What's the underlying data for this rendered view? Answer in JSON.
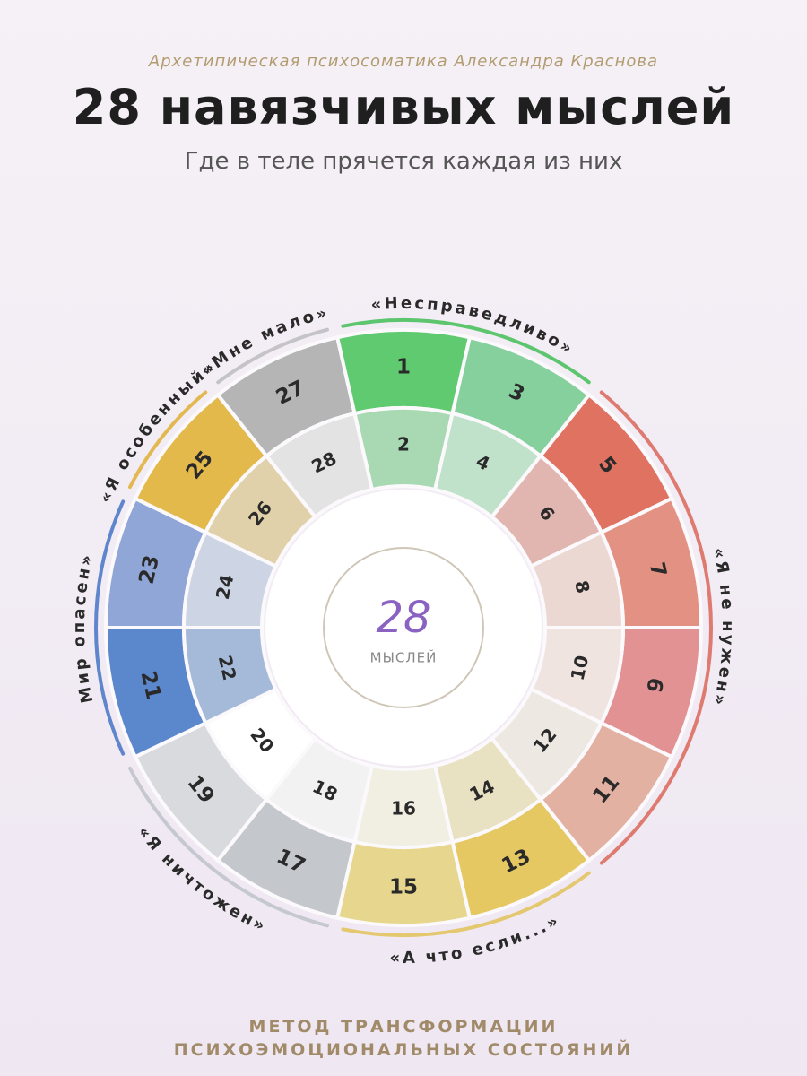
{
  "header": {
    "kicker": "Архетипическая психосоматика Александра Краснова",
    "title": "28 навязчивых мыслей",
    "subtitle": "Где в теле прячется каждая из них"
  },
  "wheel": {
    "center": {
      "number": "28",
      "label": "МЫСЛЕЙ"
    },
    "groups": [
      {
        "label": "«Несправедливо»",
        "color": "#5cc56e",
        "segments": [
          {
            "outer": "1",
            "inner": "2",
            "outer_color": "#5fca70",
            "inner_color": "#a8d9b2"
          },
          {
            "outer": "3",
            "inner": "4",
            "outer_color": "#86d09d",
            "inner_color": "#c0e2cb"
          }
        ]
      },
      {
        "label": "«Я не нужен»",
        "color": "#de7a70",
        "segments": [
          {
            "outer": "5",
            "inner": "6",
            "outer_color": "#e07262",
            "inner_color": "#e2b6b0"
          },
          {
            "outer": "7",
            "inner": "8",
            "outer_color": "#e29182",
            "inner_color": "#ecd8d2"
          },
          {
            "outer": "9",
            "inner": "10",
            "outer_color": "#e29292",
            "inner_color": "#f0e4e0"
          },
          {
            "outer": "11",
            "inner": "12",
            "outer_color": "#e2b1a2",
            "inner_color": "#eee8e2"
          }
        ]
      },
      {
        "label": "«А что если...»",
        "color": "#e4c870",
        "segments": [
          {
            "outer": "13",
            "inner": "14",
            "outer_color": "#e6c862",
            "inner_color": "#e8e2c2"
          },
          {
            "outer": "15",
            "inner": "16",
            "outer_color": "#e7d78e",
            "inner_color": "#f0efe2"
          }
        ]
      },
      {
        "label": "«Я ничтожен»",
        "color": "#c6c8d0",
        "segments": [
          {
            "outer": "17",
            "inner": "18",
            "outer_color": "#c4c8cc",
            "inner_color": "#f2f2f2"
          },
          {
            "outer": "19",
            "inner": "20",
            "outer_color": "#d8dadd",
            "inner_color": "#ffffff"
          }
        ]
      },
      {
        "label": "Мир опасен»",
        "color": "#5f86cc",
        "segments": [
          {
            "outer": "21",
            "inner": "22",
            "outer_color": "#5b87cd",
            "inner_color": "#a5b9d9"
          },
          {
            "outer": "23",
            "inner": "24",
            "outer_color": "#90a6d7",
            "inner_color": "#cdd5e5"
          }
        ]
      },
      {
        "label": "«Я особенный»",
        "color": "#e3b850",
        "segments": [
          {
            "outer": "25",
            "inner": "26",
            "outer_color": "#e4b94c",
            "inner_color": "#e1d1aa"
          }
        ]
      },
      {
        "label": "«Мне мало»",
        "color": "#c4c4c8",
        "segments": [
          {
            "outer": "27",
            "inner": "28",
            "outer_color": "#b5b5b5",
            "inner_color": "#e3e3e3"
          }
        ]
      }
    ]
  },
  "footer": {
    "lines": [
      "МЕТОД ТРАНСФОРМАЦИИ",
      "ПСИХОЭМОЦИОНАЛЬНЫХ СОСТОЯНИЙ"
    ]
  }
}
